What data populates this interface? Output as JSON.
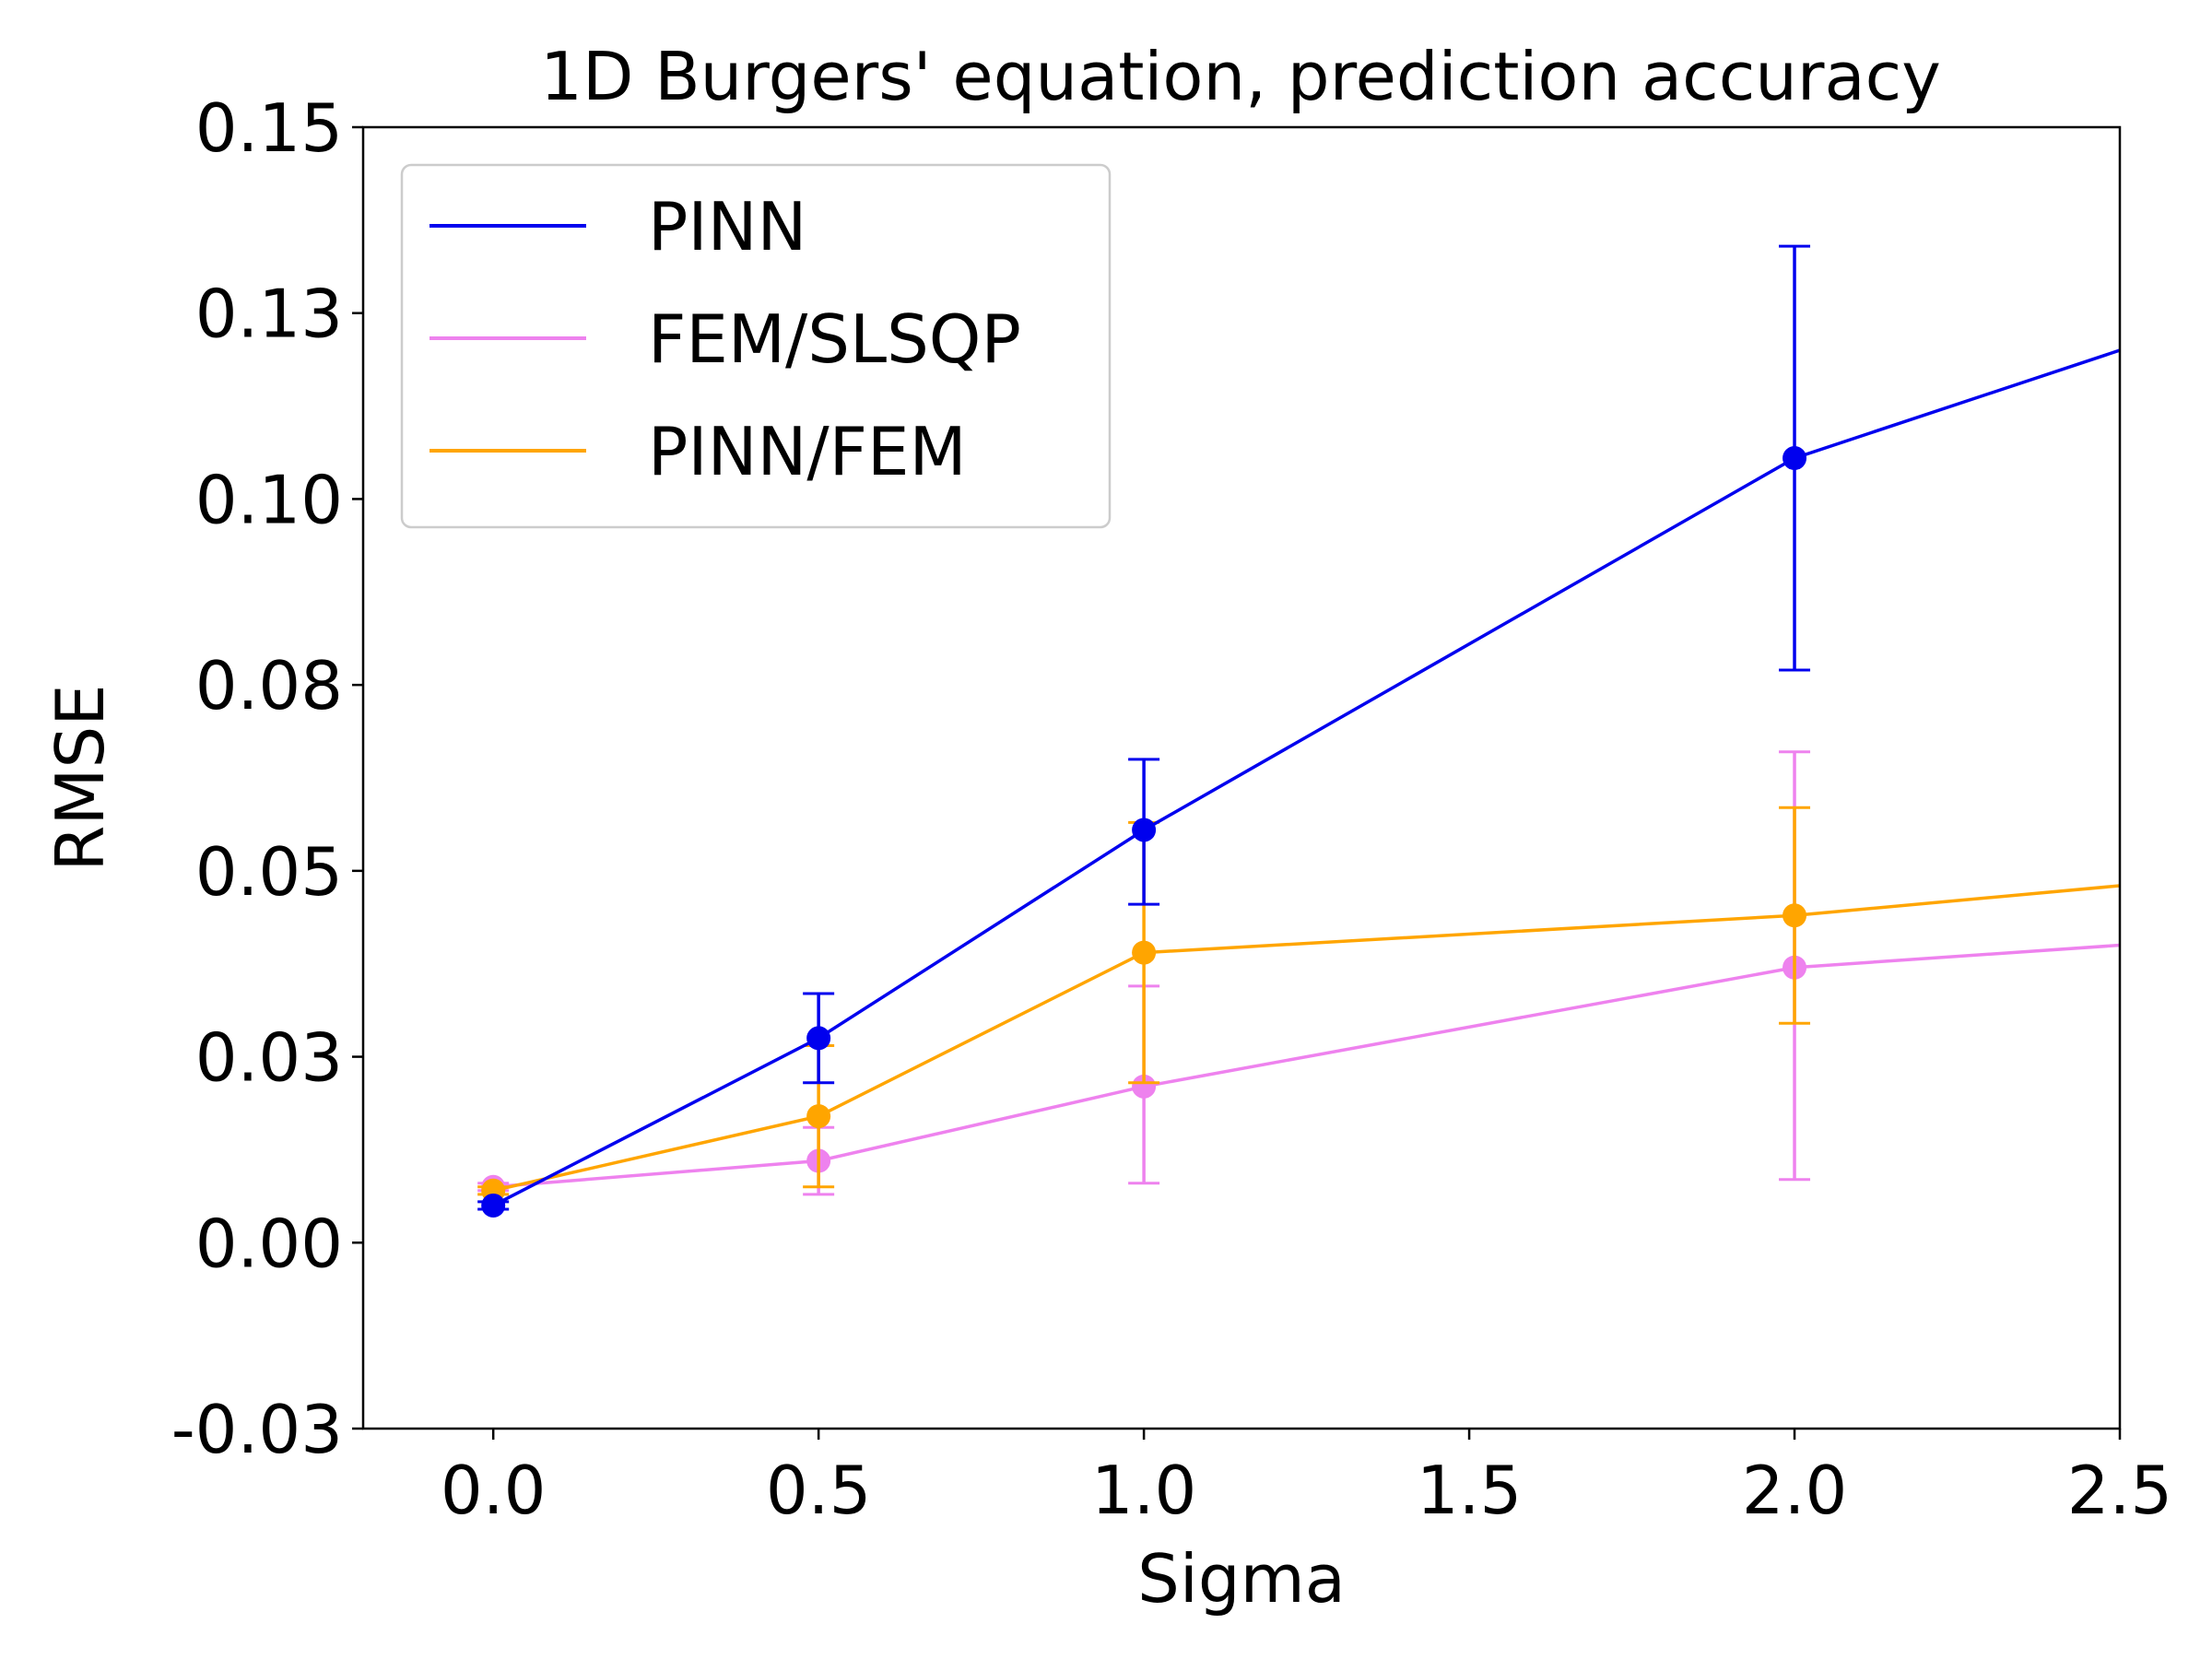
{
  "chart_data": {
    "type": "line",
    "title": "1D Burgers' equation, prediction accuracy",
    "xlabel": "Sigma",
    "ylabel": "RMSE",
    "xlim": [
      -0.2,
      2.5
    ],
    "ylim": [
      -0.025,
      0.15
    ],
    "xticks": [
      0.0,
      0.5,
      1.0,
      1.5,
      2.0,
      2.5
    ],
    "xtick_labels": [
      "0.0",
      "0.5",
      "1.0",
      "1.5",
      "2.0",
      "2.5"
    ],
    "yticks": [
      -0.025,
      0.0,
      0.025,
      0.05,
      0.075,
      0.1,
      0.125,
      0.15
    ],
    "ytick_labels": [
      "-0.03",
      "0.00",
      "0.03",
      "0.05",
      "0.08",
      "0.10",
      "0.13",
      "0.15"
    ],
    "grid": false,
    "legend_position": "top-left",
    "series": [
      {
        "name": "PINN",
        "color": "#0000ee",
        "x": [
          0.0,
          0.5,
          1.0,
          2.0
        ],
        "y": [
          0.005,
          0.0275,
          0.0555,
          0.1055
        ],
        "err_low": [
          0.0045,
          0.0215,
          0.0455,
          0.077
        ],
        "err_high": [
          0.0055,
          0.0335,
          0.065,
          0.134
        ],
        "tail": {
          "x": 2.5,
          "y": 0.12
        }
      },
      {
        "name": "FEM/SLSQP",
        "color": "#ee82ee",
        "x": [
          0.0,
          0.5,
          1.0,
          2.0
        ],
        "y": [
          0.0075,
          0.011,
          0.021,
          0.037
        ],
        "err_low": [
          0.007,
          0.0065,
          0.008,
          0.0085
        ],
        "err_high": [
          0.008,
          0.0155,
          0.0345,
          0.066
        ],
        "tail": {
          "x": 2.5,
          "y": 0.04
        }
      },
      {
        "name": "PINN/FEM",
        "color": "#ffa500",
        "x": [
          0.0,
          0.5,
          1.0,
          2.0
        ],
        "y": [
          0.007,
          0.017,
          0.039,
          0.044
        ],
        "err_low": [
          0.0065,
          0.0075,
          0.0215,
          0.0295
        ],
        "err_high": [
          0.0075,
          0.0265,
          0.0565,
          0.0585
        ],
        "tail": {
          "x": 2.5,
          "y": 0.048
        }
      }
    ]
  }
}
